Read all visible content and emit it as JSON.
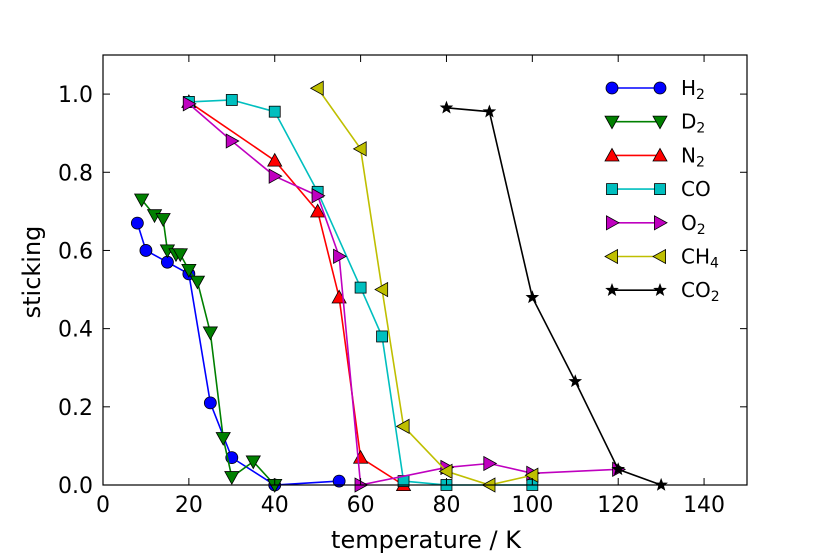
{
  "chart_data": {
    "type": "line",
    "title": "",
    "xlabel": "temperature / K",
    "ylabel": "sticking",
    "xlim": [
      0,
      150
    ],
    "ylim": [
      0,
      1.1
    ],
    "xticks": [
      0,
      20,
      40,
      60,
      80,
      100,
      120,
      140
    ],
    "yticks": [
      0.0,
      0.2,
      0.4,
      0.6,
      0.8,
      1.0
    ],
    "xtick_labels": [
      "0",
      "20",
      "40",
      "60",
      "80",
      "100",
      "120",
      "140"
    ],
    "ytick_labels": [
      "0.0",
      "0.2",
      "0.4",
      "0.6",
      "0.8",
      "1.0"
    ],
    "grid": false,
    "legend_position": "top-right",
    "series": [
      {
        "name": "H",
        "sub": "2",
        "color": "#0000ff",
        "marker": "circle",
        "x": [
          8,
          10,
          15,
          20,
          25,
          30,
          40,
          55
        ],
        "y": [
          0.67,
          0.6,
          0.57,
          0.54,
          0.21,
          0.07,
          0.0,
          0.01
        ]
      },
      {
        "name": "D",
        "sub": "2",
        "color": "#008000",
        "marker": "triangle-down",
        "x": [
          9,
          12,
          14,
          15,
          17,
          18,
          20,
          22,
          25,
          28,
          30,
          35,
          40
        ],
        "y": [
          0.73,
          0.69,
          0.68,
          0.6,
          0.59,
          0.59,
          0.55,
          0.52,
          0.39,
          0.12,
          0.02,
          0.06,
          0.0
        ]
      },
      {
        "name": "N",
        "sub": "2",
        "color": "#ff0000",
        "marker": "triangle-up",
        "x": [
          20,
          40,
          50,
          55,
          60,
          70
        ],
        "y": [
          0.98,
          0.83,
          0.7,
          0.48,
          0.07,
          0.0
        ]
      },
      {
        "name": "CO",
        "sub": "",
        "color": "#00bfbf",
        "marker": "square",
        "x": [
          20,
          30,
          40,
          50,
          60,
          65,
          70,
          80,
          100
        ],
        "y": [
          0.98,
          0.985,
          0.955,
          0.75,
          0.505,
          0.38,
          0.01,
          0.0,
          0.0
        ]
      },
      {
        "name": "O",
        "sub": "2",
        "color": "#bf00bf",
        "marker": "triangle-right",
        "x": [
          20,
          30,
          40,
          50,
          55,
          60,
          80,
          90,
          100,
          120
        ],
        "y": [
          0.975,
          0.88,
          0.79,
          0.74,
          0.585,
          0.0,
          0.045,
          0.055,
          0.03,
          0.04
        ]
      },
      {
        "name": "CH",
        "sub": "4",
        "color": "#bfbf00",
        "marker": "triangle-left",
        "x": [
          50,
          60,
          65,
          70,
          80,
          90,
          100
        ],
        "y": [
          1.015,
          0.86,
          0.5,
          0.15,
          0.035,
          0.0,
          0.025
        ]
      },
      {
        "name": "CO",
        "sub": "2",
        "color": "#000000",
        "marker": "star",
        "x": [
          80,
          90,
          100,
          110,
          120,
          130
        ],
        "y": [
          0.965,
          0.955,
          0.48,
          0.265,
          0.04,
          0.0
        ]
      }
    ]
  }
}
